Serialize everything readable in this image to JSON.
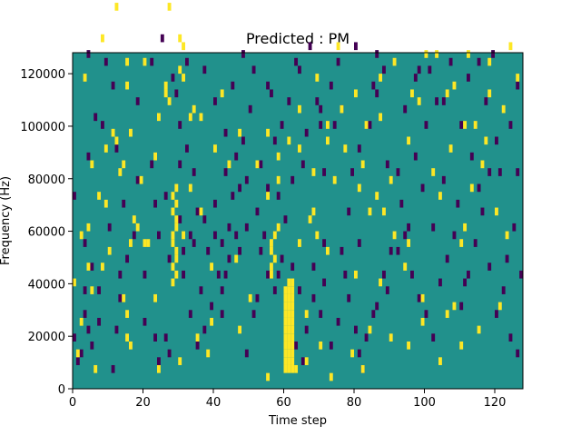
{
  "chart_data": {
    "type": "heatmap",
    "title": "Predicted : PM",
    "xlabel": "Time step",
    "ylabel": "Frequency (Hz)",
    "xlim": [
      0,
      128
    ],
    "ylim": [
      0,
      128000
    ],
    "xticks": [
      0,
      20,
      40,
      60,
      80,
      100,
      120
    ],
    "yticks": [
      0,
      20000,
      40000,
      60000,
      80000,
      100000,
      120000
    ],
    "xtick_labels": [
      "0",
      "20",
      "40",
      "60",
      "80",
      "100",
      "120"
    ],
    "ytick_labels": [
      "0",
      "20000",
      "40000",
      "60000",
      "80000",
      "100000",
      "120000"
    ],
    "grid": false,
    "colors": {
      "background": "#21918c",
      "high": "#fde725",
      "low": "#440154"
    },
    "bin_height_hz": 3000,
    "high_cells": [
      [
        60,
        2
      ],
      [
        61,
        2
      ],
      [
        62,
        2
      ],
      [
        60,
        3
      ],
      [
        61,
        3
      ],
      [
        62,
        3
      ],
      [
        60,
        4
      ],
      [
        61,
        4
      ],
      [
        62,
        4
      ],
      [
        60,
        5
      ],
      [
        61,
        5
      ],
      [
        62,
        5
      ],
      [
        60,
        6
      ],
      [
        61,
        6
      ],
      [
        62,
        6
      ],
      [
        60,
        7
      ],
      [
        61,
        7
      ],
      [
        62,
        7
      ],
      [
        60,
        8
      ],
      [
        61,
        8
      ],
      [
        62,
        8
      ],
      [
        60,
        9
      ],
      [
        61,
        9
      ],
      [
        62,
        9
      ],
      [
        60,
        10
      ],
      [
        61,
        10
      ],
      [
        62,
        10
      ],
      [
        60,
        11
      ],
      [
        61,
        11
      ],
      [
        62,
        11
      ],
      [
        60,
        12
      ],
      [
        61,
        12
      ],
      [
        62,
        12
      ],
      [
        61,
        13
      ],
      [
        62,
        13
      ],
      [
        28,
        13
      ],
      [
        29,
        14
      ],
      [
        28,
        15
      ],
      [
        29,
        16
      ],
      [
        29,
        17
      ],
      [
        28,
        18
      ],
      [
        28,
        19
      ],
      [
        29,
        20
      ],
      [
        29,
        21
      ],
      [
        28,
        22
      ],
      [
        29,
        23
      ],
      [
        28,
        24
      ],
      [
        29,
        25
      ],
      [
        56,
        14
      ],
      [
        56,
        15
      ],
      [
        57,
        16
      ],
      [
        56,
        17
      ],
      [
        56,
        18
      ],
      [
        57,
        19
      ],
      [
        58,
        20
      ],
      [
        20,
        18
      ],
      [
        31,
        19
      ],
      [
        4,
        20
      ],
      [
        16,
        18
      ],
      [
        15,
        6
      ],
      [
        15,
        9
      ],
      [
        14,
        11
      ],
      [
        0,
        13
      ],
      [
        1,
        4
      ],
      [
        5,
        12
      ],
      [
        8,
        15
      ],
      [
        10,
        17
      ],
      [
        18,
        20
      ],
      [
        21,
        18
      ],
      [
        2,
        8
      ],
      [
        4,
        15
      ],
      [
        7,
        24
      ],
      [
        5,
        28
      ],
      [
        9,
        30
      ],
      [
        12,
        31
      ],
      [
        16,
        32
      ],
      [
        19,
        26
      ],
      [
        23,
        29
      ],
      [
        26,
        38
      ],
      [
        27,
        36
      ],
      [
        30,
        40
      ],
      [
        33,
        34
      ],
      [
        31,
        43
      ],
      [
        27,
        48
      ],
      [
        30,
        44
      ],
      [
        34,
        35
      ],
      [
        15,
        38
      ],
      [
        20,
        41
      ],
      [
        6,
        2
      ],
      [
        16,
        5
      ],
      [
        35,
        6
      ],
      [
        38,
        4
      ],
      [
        39,
        8
      ],
      [
        30,
        3
      ],
      [
        47,
        7
      ],
      [
        55,
        1
      ],
      [
        63,
        2
      ],
      [
        66,
        3
      ],
      [
        70,
        5
      ],
      [
        73,
        1
      ],
      [
        79,
        4
      ],
      [
        82,
        2
      ],
      [
        84,
        7
      ],
      [
        90,
        6
      ],
      [
        95,
        5
      ],
      [
        99,
        11
      ],
      [
        104,
        3
      ],
      [
        106,
        9
      ],
      [
        108,
        10
      ],
      [
        110,
        5
      ],
      [
        64,
        18
      ],
      [
        67,
        21
      ],
      [
        69,
        19
      ],
      [
        72,
        17
      ],
      [
        74,
        26
      ],
      [
        77,
        30
      ],
      [
        80,
        14
      ],
      [
        84,
        22
      ],
      [
        86,
        24
      ],
      [
        88,
        22
      ],
      [
        91,
        19
      ],
      [
        94,
        15
      ],
      [
        102,
        27
      ],
      [
        104,
        24
      ],
      [
        107,
        30
      ],
      [
        110,
        18
      ],
      [
        113,
        25
      ],
      [
        116,
        28
      ],
      [
        120,
        22
      ],
      [
        123,
        19
      ],
      [
        64,
        30
      ],
      [
        68,
        27
      ],
      [
        72,
        33
      ],
      [
        76,
        35
      ],
      [
        82,
        28
      ],
      [
        87,
        34
      ],
      [
        90,
        26
      ],
      [
        95,
        31
      ],
      [
        98,
        36
      ],
      [
        103,
        42
      ],
      [
        108,
        38
      ],
      [
        111,
        33
      ],
      [
        118,
        37
      ],
      [
        124,
        43
      ],
      [
        118,
        41
      ],
      [
        114,
        33
      ],
      [
        126,
        39
      ],
      [
        11,
        32
      ],
      [
        15,
        41
      ],
      [
        12,
        48
      ],
      [
        8,
        44
      ],
      [
        3,
        39
      ],
      [
        2,
        19
      ],
      [
        9,
        23
      ],
      [
        13,
        27
      ],
      [
        17,
        21
      ],
      [
        24,
        34
      ],
      [
        26,
        37
      ],
      [
        31,
        39
      ],
      [
        36,
        34
      ],
      [
        40,
        30
      ],
      [
        42,
        37
      ],
      [
        44,
        28
      ],
      [
        47,
        32
      ],
      [
        52,
        28
      ],
      [
        55,
        24
      ],
      [
        58,
        26
      ],
      [
        61,
        31
      ],
      [
        64,
        35
      ],
      [
        69,
        39
      ],
      [
        72,
        31
      ],
      [
        75,
        43
      ],
      [
        80,
        37
      ],
      [
        83,
        33
      ],
      [
        87,
        39
      ],
      [
        91,
        41
      ],
      [
        96,
        37
      ],
      [
        100,
        42
      ],
      [
        106,
        37
      ],
      [
        112,
        42
      ],
      [
        117,
        31
      ],
      [
        122,
        35
      ],
      [
        111,
        20
      ],
      [
        115,
        7
      ],
      [
        121,
        10
      ],
      [
        99,
        8
      ],
      [
        95,
        18
      ],
      [
        87,
        13
      ],
      [
        81,
        25
      ],
      [
        68,
        22
      ],
      [
        66,
        9
      ],
      [
        58,
        29
      ],
      [
        55,
        32
      ],
      [
        50,
        11
      ],
      [
        46,
        16
      ],
      [
        39,
        15
      ],
      [
        36,
        22
      ],
      [
        33,
        25
      ],
      [
        23,
        11
      ],
      [
        24,
        2
      ],
      [
        14,
        28
      ]
    ],
    "low_cells": [
      [
        1,
        3
      ],
      [
        2,
        4
      ],
      [
        3,
        9
      ],
      [
        4,
        7
      ],
      [
        5,
        5
      ],
      [
        11,
        2
      ],
      [
        12,
        7
      ],
      [
        13,
        11
      ],
      [
        17,
        19
      ],
      [
        20,
        8
      ],
      [
        23,
        6
      ],
      [
        24,
        3
      ],
      [
        26,
        6
      ],
      [
        27,
        4
      ],
      [
        31,
        14
      ],
      [
        33,
        9
      ],
      [
        35,
        5
      ],
      [
        37,
        7
      ],
      [
        39,
        10
      ],
      [
        42,
        12
      ],
      [
        43,
        14
      ],
      [
        44,
        16
      ],
      [
        46,
        19
      ],
      [
        47,
        17
      ],
      [
        49,
        20
      ],
      [
        51,
        9
      ],
      [
        52,
        11
      ],
      [
        55,
        14
      ],
      [
        57,
        12
      ],
      [
        59,
        16
      ],
      [
        63,
        5
      ],
      [
        65,
        3
      ],
      [
        66,
        7
      ],
      [
        68,
        11
      ],
      [
        70,
        9
      ],
      [
        71,
        13
      ],
      [
        73,
        5
      ],
      [
        75,
        8
      ],
      [
        77,
        14
      ],
      [
        78,
        11
      ],
      [
        80,
        7
      ],
      [
        81,
        4
      ],
      [
        82,
        2
      ],
      [
        83,
        6
      ],
      [
        85,
        9
      ],
      [
        86,
        10
      ],
      [
        88,
        14
      ],
      [
        89,
        12
      ],
      [
        92,
        17
      ],
      [
        94,
        19
      ],
      [
        96,
        14
      ],
      [
        98,
        11
      ],
      [
        100,
        9
      ],
      [
        102,
        6
      ],
      [
        104,
        13
      ],
      [
        106,
        16
      ],
      [
        108,
        19
      ],
      [
        110,
        10
      ],
      [
        112,
        14
      ],
      [
        114,
        18
      ],
      [
        116,
        22
      ],
      [
        118,
        15
      ],
      [
        120,
        9
      ],
      [
        122,
        12
      ],
      [
        124,
        6
      ],
      [
        126,
        4
      ],
      [
        127,
        14
      ],
      [
        0,
        24
      ],
      [
        4,
        29
      ],
      [
        6,
        34
      ],
      [
        9,
        41
      ],
      [
        11,
        38
      ],
      [
        12,
        30
      ],
      [
        18,
        26
      ],
      [
        22,
        41
      ],
      [
        25,
        44
      ],
      [
        28,
        39
      ],
      [
        30,
        33
      ],
      [
        32,
        30
      ],
      [
        34,
        27
      ],
      [
        37,
        21
      ],
      [
        40,
        23
      ],
      [
        42,
        18
      ],
      [
        45,
        24
      ],
      [
        48,
        31
      ],
      [
        50,
        35
      ],
      [
        53,
        28
      ],
      [
        55,
        25
      ],
      [
        57,
        31
      ],
      [
        61,
        36
      ],
      [
        64,
        40
      ],
      [
        66,
        32
      ],
      [
        70,
        33
      ],
      [
        73,
        38
      ],
      [
        76,
        35
      ],
      [
        79,
        27
      ],
      [
        81,
        30
      ],
      [
        84,
        33
      ],
      [
        86,
        37
      ],
      [
        89,
        28
      ],
      [
        93,
        23
      ],
      [
        95,
        20
      ],
      [
        97,
        29
      ],
      [
        100,
        33
      ],
      [
        103,
        36
      ],
      [
        107,
        41
      ],
      [
        110,
        33
      ],
      [
        113,
        29
      ],
      [
        117,
        36
      ],
      [
        121,
        27
      ],
      [
        124,
        33
      ],
      [
        126,
        38
      ],
      [
        119,
        42
      ],
      [
        98,
        40
      ],
      [
        86,
        42
      ],
      [
        70,
        35
      ],
      [
        65,
        28
      ],
      [
        60,
        21
      ],
      [
        58,
        24
      ],
      [
        54,
        19
      ],
      [
        52,
        22
      ],
      [
        47,
        25
      ],
      [
        44,
        20
      ],
      [
        41,
        14
      ],
      [
        38,
        17
      ],
      [
        35,
        22
      ],
      [
        33,
        19
      ],
      [
        27,
        16
      ],
      [
        24,
        19
      ],
      [
        20,
        14
      ],
      [
        15,
        16
      ],
      [
        10,
        20
      ],
      [
        7,
        12
      ],
      [
        5,
        15
      ],
      [
        3,
        18
      ],
      [
        30,
        28
      ],
      [
        36,
        12
      ],
      [
        43,
        27
      ],
      [
        46,
        29
      ],
      [
        49,
        26
      ],
      [
        56,
        37
      ],
      [
        59,
        33
      ],
      [
        62,
        26
      ],
      [
        67,
        43
      ],
      [
        71,
        27
      ],
      [
        74,
        33
      ],
      [
        78,
        22
      ],
      [
        90,
        17
      ],
      [
        92,
        27
      ],
      [
        99,
        25
      ],
      [
        102,
        20
      ],
      [
        105,
        26
      ],
      [
        109,
        23
      ],
      [
        111,
        13
      ],
      [
        115,
        25
      ],
      [
        118,
        27
      ],
      [
        123,
        16
      ],
      [
        125,
        20
      ],
      [
        4,
        42
      ],
      [
        8,
        33
      ],
      [
        14,
        23
      ],
      [
        18,
        36
      ],
      [
        22,
        28
      ],
      [
        26,
        24
      ],
      [
        29,
        37
      ],
      [
        32,
        41
      ],
      [
        37,
        40
      ],
      [
        40,
        36
      ],
      [
        43,
        32
      ],
      [
        45,
        38
      ],
      [
        48,
        42
      ],
      [
        51,
        40
      ],
      [
        55,
        38
      ],
      [
        63,
        41
      ],
      [
        69,
        36
      ],
      [
        75,
        41
      ],
      [
        80,
        43
      ],
      [
        85,
        38
      ],
      [
        88,
        40
      ],
      [
        94,
        35
      ],
      [
        97,
        39
      ],
      [
        101,
        40
      ],
      [
        105,
        36
      ],
      [
        112,
        39
      ],
      [
        115,
        41
      ],
      [
        120,
        31
      ],
      [
        126,
        27
      ],
      [
        81,
        18
      ],
      [
        76,
        17
      ],
      [
        68,
        15
      ],
      [
        62,
        15
      ],
      [
        58,
        14
      ],
      [
        53,
        17
      ],
      [
        40,
        19
      ],
      [
        30,
        21
      ],
      [
        23,
        23
      ],
      [
        13,
        14
      ],
      [
        7,
        8
      ],
      [
        3,
        12
      ],
      [
        0,
        6
      ],
      [
        34,
        18
      ],
      [
        31,
        17
      ],
      [
        42,
        9
      ],
      [
        49,
        4
      ],
      [
        64,
        12
      ],
      [
        71,
        18
      ]
    ]
  }
}
